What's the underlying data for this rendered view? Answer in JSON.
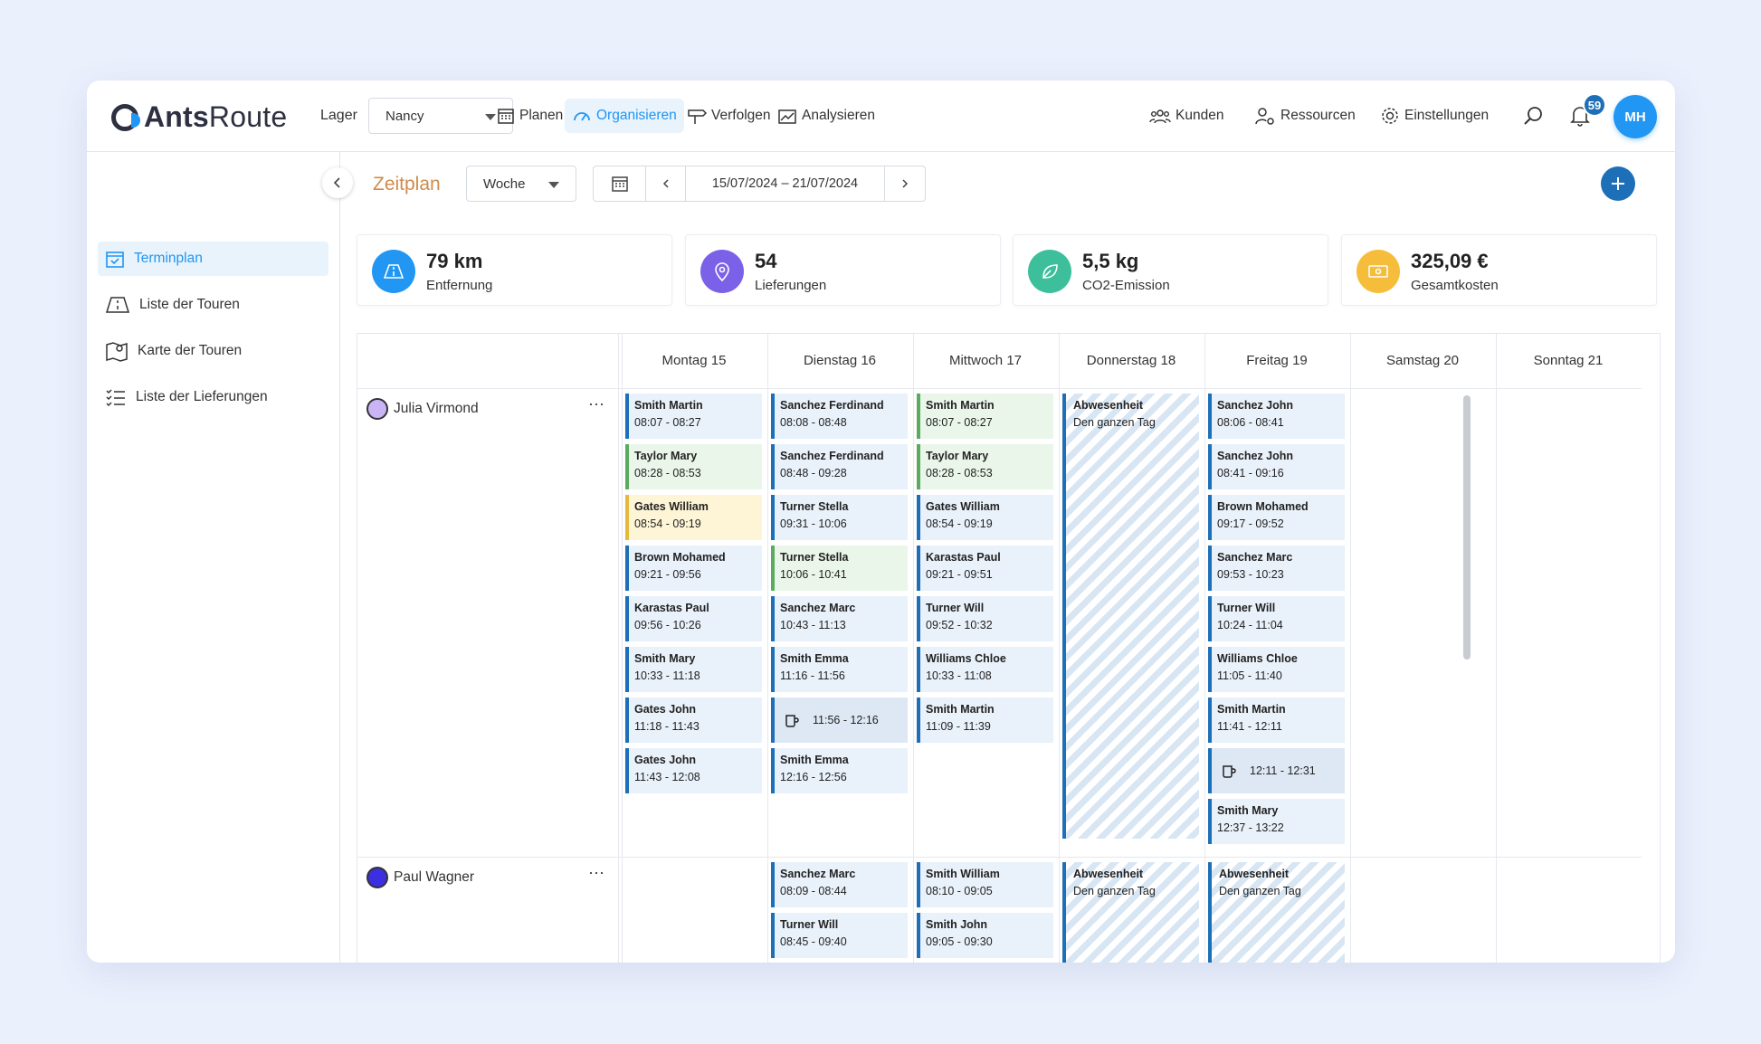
{
  "app": {
    "logo_bold": "Ants",
    "logo_light": "Route"
  },
  "header": {
    "lager_label": "Lager",
    "lager_value": "Nancy",
    "nav": [
      {
        "label": "Planen",
        "icon": "calendar-icon"
      },
      {
        "label": "Organisieren",
        "icon": "gauge-icon",
        "active": true
      },
      {
        "label": "Verfolgen",
        "icon": "signpost-icon"
      },
      {
        "label": "Analysieren",
        "icon": "chart-icon"
      }
    ],
    "right_nav": [
      {
        "label": "Kunden",
        "icon": "customers-icon"
      },
      {
        "label": "Ressourcen",
        "icon": "resources-icon"
      },
      {
        "label": "Einstellungen",
        "icon": "gear-icon"
      }
    ],
    "notifications": "59",
    "avatar": "MH"
  },
  "sidebar": {
    "items": [
      {
        "label": "Terminplan",
        "icon": "calendar-check-icon",
        "active": true
      },
      {
        "label": "Liste der Touren",
        "icon": "route-icon"
      },
      {
        "label": "Karte der Touren",
        "icon": "map-icon"
      },
      {
        "label": "Liste der Lieferungen",
        "icon": "checklist-icon"
      }
    ]
  },
  "toolbar": {
    "title": "Zeitplan",
    "view": "Woche",
    "date_range": "15/07/2024 – 21/07/2024"
  },
  "kpis": [
    {
      "value": "79 km",
      "label": "Entfernung",
      "color": "#2196f3",
      "icon": "road-icon"
    },
    {
      "value": "54",
      "label": "Lieferungen",
      "color": "#7b61e8",
      "icon": "pin-icon"
    },
    {
      "value": "5,5 kg",
      "label": "CO2-Emission",
      "color": "#3cbf9a",
      "icon": "leaf-icon"
    },
    {
      "value": "325,09 €",
      "label": "Gesamtkosten",
      "color": "#f6bd3a",
      "icon": "money-icon"
    }
  ],
  "days": [
    "Montag 15",
    "Dienstag 16",
    "Mittwoch 17",
    "Donnerstag 18",
    "Freitag 19",
    "Samstag 20",
    "Sonntag 21"
  ],
  "resources": [
    {
      "name": "Julia Virmond",
      "color": "#c9b5f5",
      "days": [
        [
          {
            "name": "Smith Martin",
            "time": "08:07 - 08:27",
            "style": "blue"
          },
          {
            "name": "Taylor Mary",
            "time": "08:28 - 08:53",
            "style": "green"
          },
          {
            "name": "Gates William",
            "time": "08:54 - 09:19",
            "style": "yellow"
          },
          {
            "name": "Brown Mohamed",
            "time": "09:21 - 09:56",
            "style": "blue"
          },
          {
            "name": "Karastas Paul",
            "time": "09:56 - 10:26",
            "style": "blue"
          },
          {
            "name": "Smith Mary",
            "time": "10:33 - 11:18",
            "style": "blue"
          },
          {
            "name": "Gates John",
            "time": "11:18 - 11:43",
            "style": "blue"
          },
          {
            "name": "Gates John",
            "time": "11:43 - 12:08",
            "style": "blue"
          }
        ],
        [
          {
            "name": "Sanchez Ferdinand",
            "time": "08:08 - 08:48",
            "style": "blue"
          },
          {
            "name": "Sanchez Ferdinand",
            "time": "08:48 - 09:28",
            "style": "blue"
          },
          {
            "name": "Turner Stella",
            "time": "09:31 - 10:06",
            "style": "blue"
          },
          {
            "name": "Turner Stella",
            "time": "10:06 - 10:41",
            "style": "green"
          },
          {
            "name": "Sanchez Marc",
            "time": "10:43 - 11:13",
            "style": "blue"
          },
          {
            "name": "Smith Emma",
            "time": "11:16 - 11:56",
            "style": "blue"
          },
          {
            "name": "",
            "time": "11:56 - 12:16",
            "style": "brk"
          },
          {
            "name": "Smith Emma",
            "time": "12:16 - 12:56",
            "style": "blue"
          }
        ],
        [
          {
            "name": "Smith Martin",
            "time": "08:07 - 08:27",
            "style": "green"
          },
          {
            "name": "Taylor Mary",
            "time": "08:28 - 08:53",
            "style": "green"
          },
          {
            "name": "Gates William",
            "time": "08:54 - 09:19",
            "style": "blue"
          },
          {
            "name": "Karastas Paul",
            "time": "09:21 - 09:51",
            "style": "blue"
          },
          {
            "name": "Turner Will",
            "time": "09:52 - 10:32",
            "style": "blue"
          },
          {
            "name": "Williams Chloe",
            "time": "10:33 - 11:08",
            "style": "blue"
          },
          {
            "name": "Smith Martin",
            "time": "11:09 - 11:39",
            "style": "blue"
          }
        ],
        [
          {
            "name": "Abwesenheit",
            "time": "Den ganzen Tag",
            "style": "abs"
          }
        ],
        [
          {
            "name": "Sanchez John",
            "time": "08:06 - 08:41",
            "style": "blue"
          },
          {
            "name": "Sanchez John",
            "time": "08:41 - 09:16",
            "style": "blue"
          },
          {
            "name": "Brown Mohamed",
            "time": "09:17 - 09:52",
            "style": "blue"
          },
          {
            "name": "Sanchez Marc",
            "time": "09:53 - 10:23",
            "style": "blue"
          },
          {
            "name": "Turner Will",
            "time": "10:24 - 11:04",
            "style": "blue"
          },
          {
            "name": "Williams Chloe",
            "time": "11:05 - 11:40",
            "style": "blue"
          },
          {
            "name": "Smith Martin",
            "time": "11:41 - 12:11",
            "style": "blue"
          },
          {
            "name": "",
            "time": "12:11 - 12:31",
            "style": "brk"
          },
          {
            "name": "Smith Mary",
            "time": "12:37 - 13:22",
            "style": "blue"
          }
        ],
        [],
        []
      ]
    },
    {
      "name": "Paul Wagner",
      "color": "#3b2fe0",
      "days": [
        [],
        [
          {
            "name": "Sanchez Marc",
            "time": "08:09 - 08:44",
            "style": "blue"
          },
          {
            "name": "Turner Will",
            "time": "08:45 - 09:40",
            "style": "blue"
          }
        ],
        [
          {
            "name": "Smith William",
            "time": "08:10 - 09:05",
            "style": "blue"
          },
          {
            "name": "Smith John",
            "time": "09:05 - 09:30",
            "style": "blue"
          }
        ],
        [
          {
            "name": "Abwesenheit",
            "time": "Den ganzen Tag",
            "style": "abs"
          }
        ],
        [
          {
            "name": "Abwesenheit",
            "time": "Den ganzen Tag",
            "style": "abs"
          }
        ],
        [],
        []
      ]
    }
  ]
}
